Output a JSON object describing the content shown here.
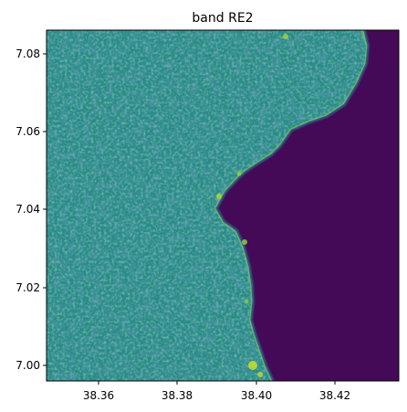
{
  "plot": {
    "title": "band RE2",
    "x_ticks": [
      "38.36",
      "38.38",
      "38.40",
      "38.42"
    ],
    "y_ticks": [
      "7.08",
      "7.06",
      "7.04",
      "7.02",
      "7.00"
    ]
  },
  "colors": {
    "land_base": "#2a8a88",
    "land_mid": "#2f9a85",
    "land_light": "#55c06a",
    "land_bright": "#c8df2b",
    "water": "#450a57",
    "water_edge": "#31407b",
    "frame": "#000000"
  }
}
